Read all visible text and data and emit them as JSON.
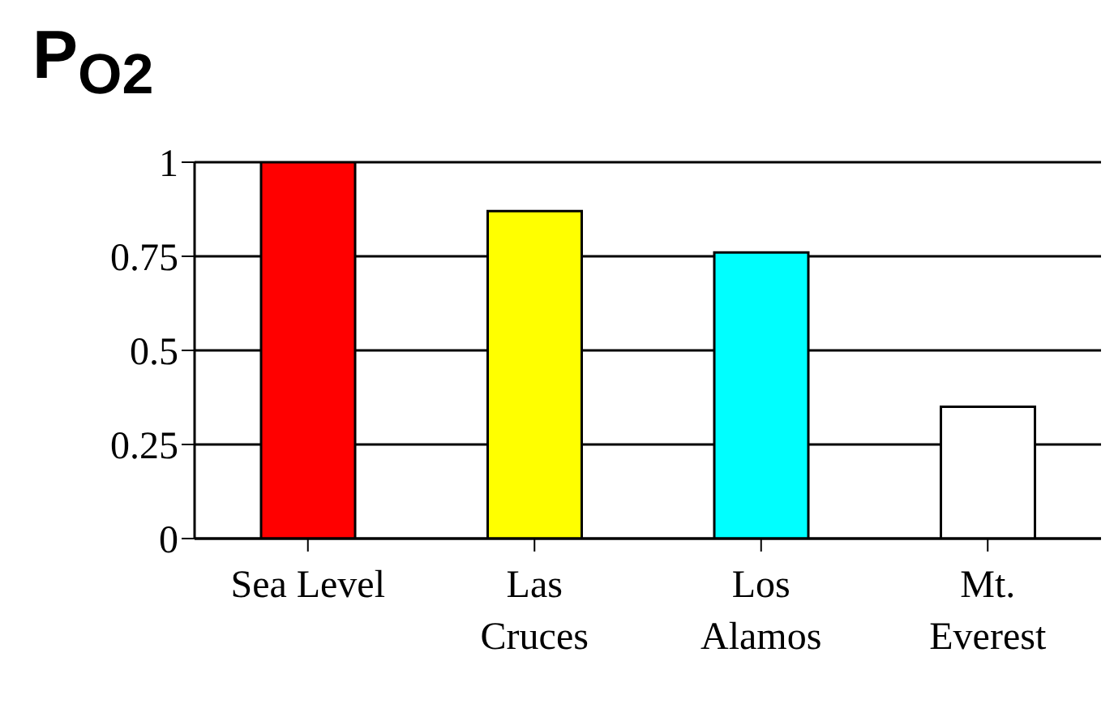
{
  "chart_data": {
    "type": "bar",
    "title": "P$_{O2}$",
    "categories": [
      "Sea Level",
      "Las\nCruces",
      "Los\nAlamos",
      "Mt.\nEverest"
    ],
    "values": [
      1,
      0.87,
      0.76,
      0.35
    ],
    "colors": [
      "#ff0000",
      "#ffff00",
      "#00ffff",
      "#ffffff"
    ],
    "ylim": [
      0,
      1
    ],
    "yticks": [
      0,
      0.25,
      0.5,
      0.75,
      1
    ],
    "grid": "y",
    "legend": false
  }
}
